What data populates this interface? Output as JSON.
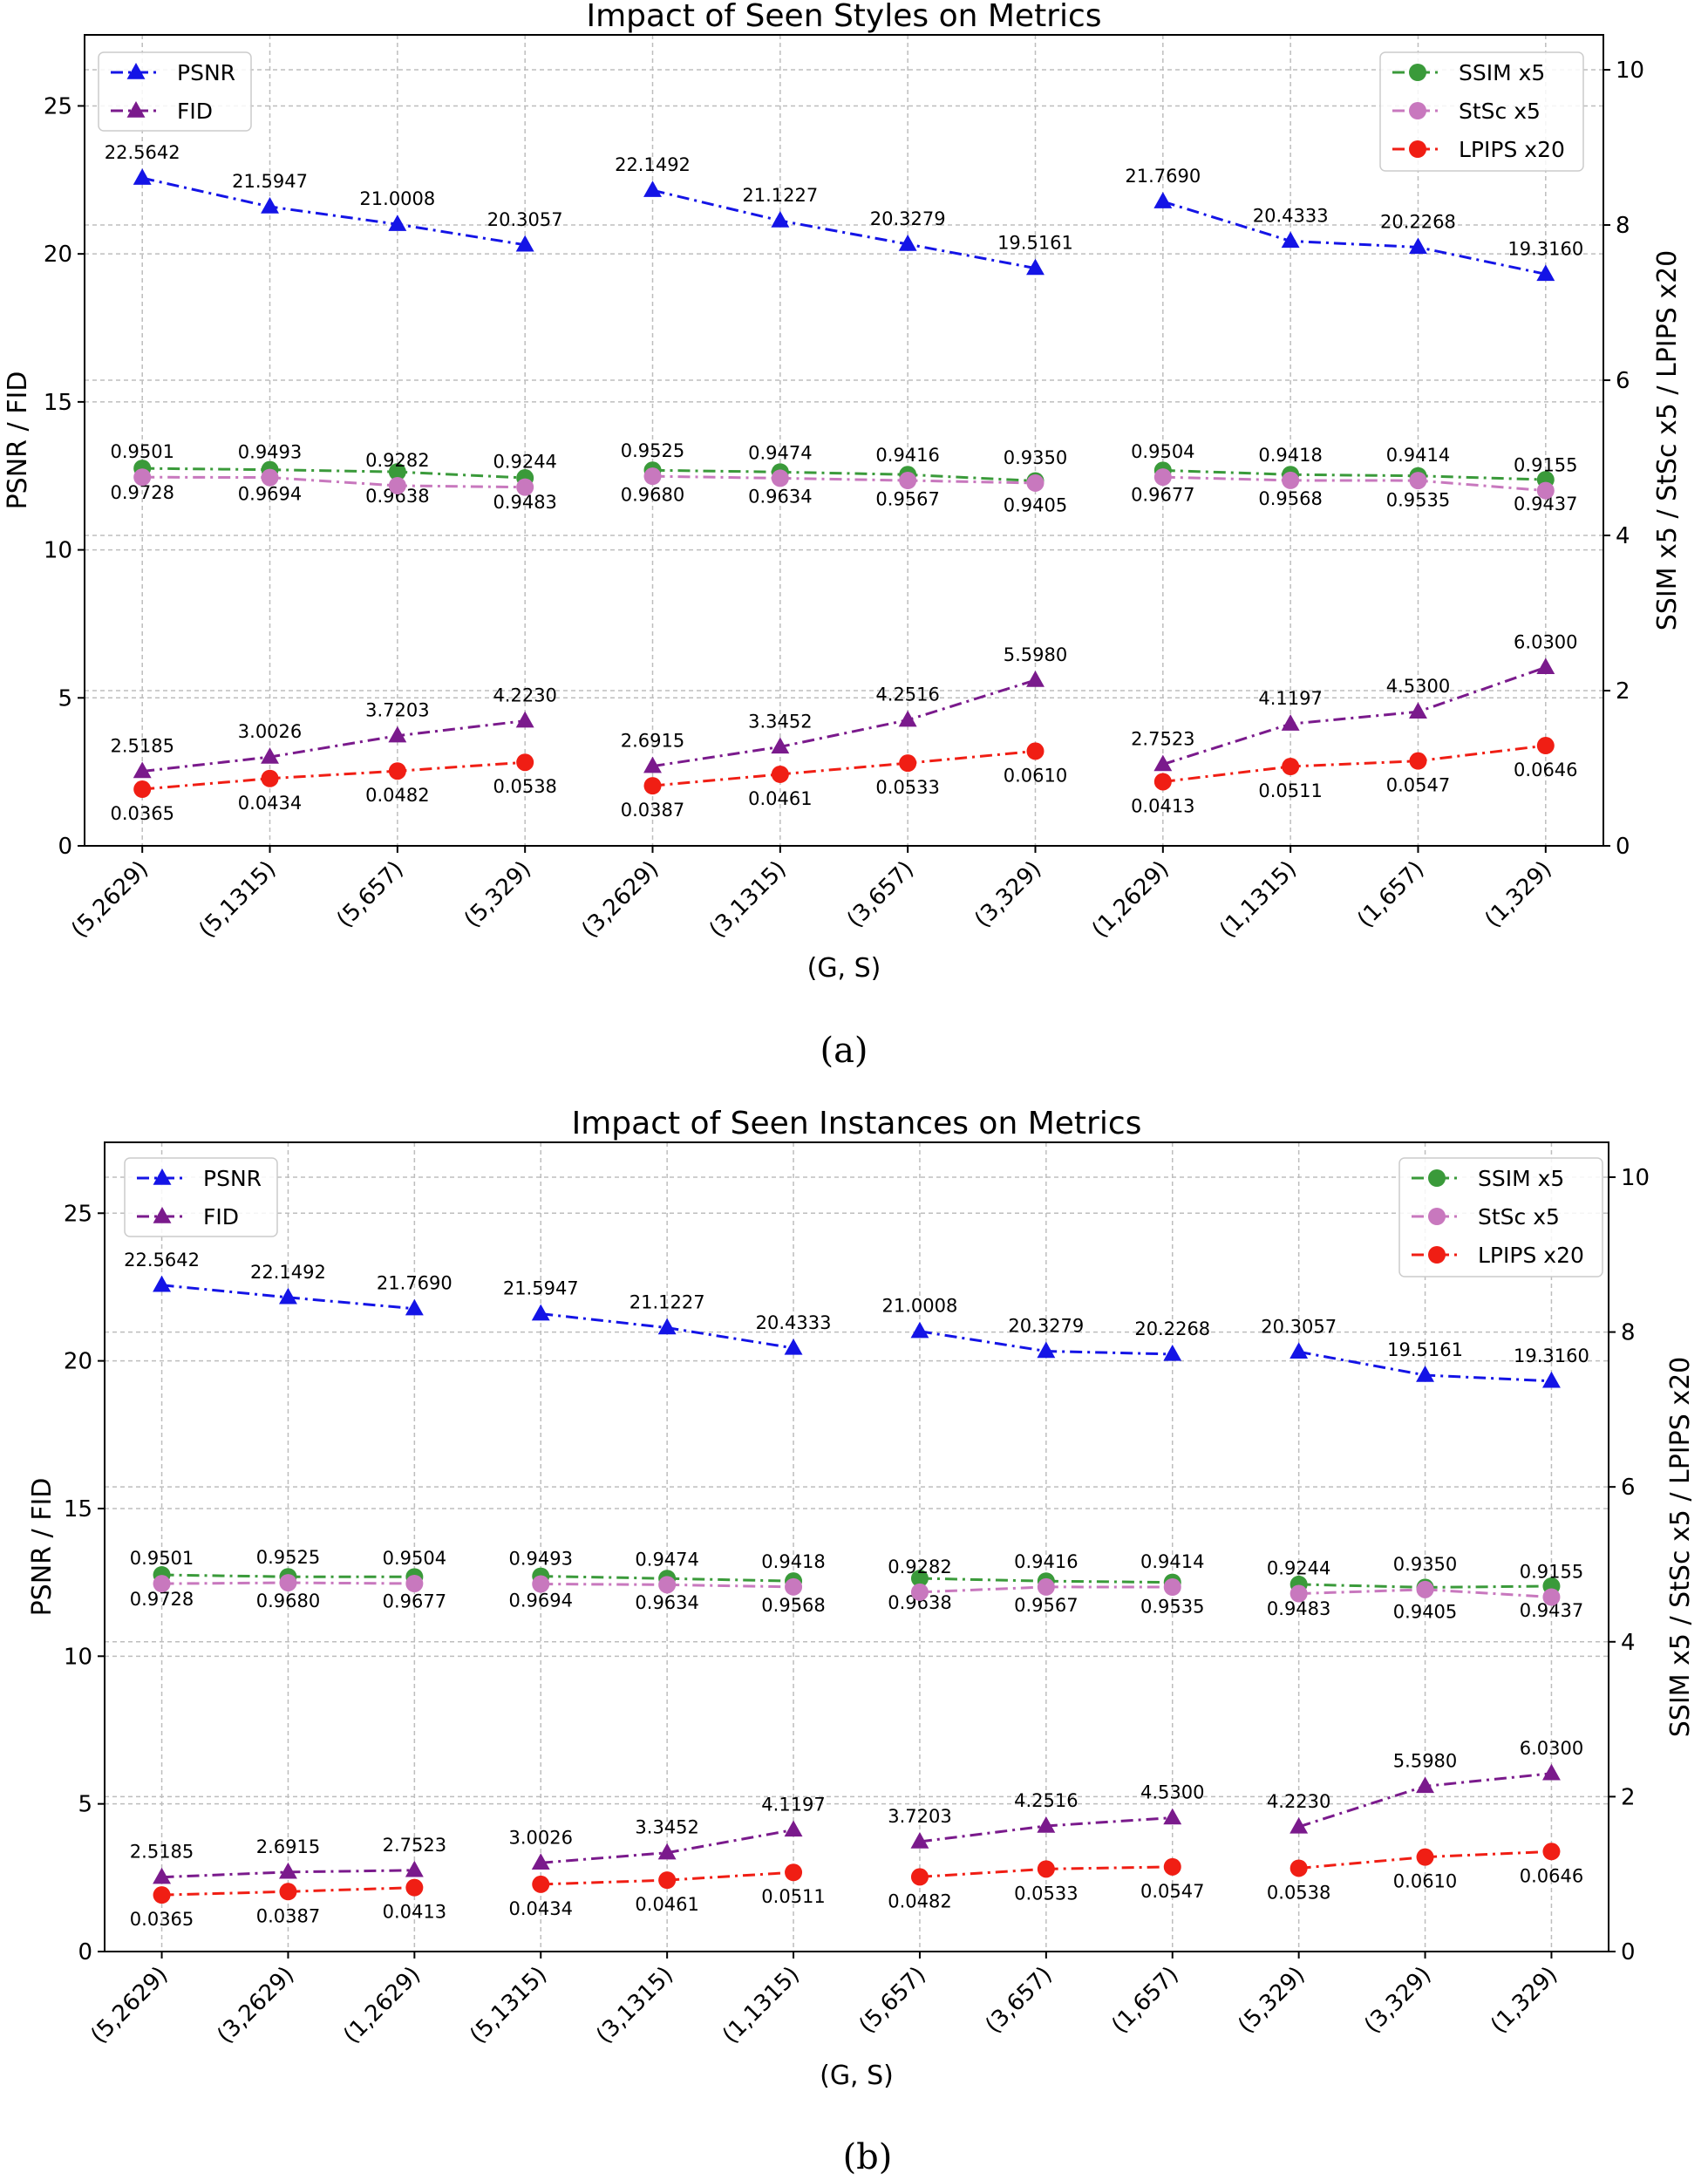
{
  "captions": [
    "(a)",
    "(b)"
  ],
  "colors": {
    "PSNR": "#1414e6",
    "FID": "#7a1a8c",
    "SSIM x5": "#3a9a3a",
    "StSc x5": "#c878be",
    "LPIPS x20": "#f01e14"
  },
  "chart_data": [
    {
      "type": "line",
      "title": "Impact of Seen Styles on Metrics",
      "xlabel": "(G, S)",
      "ylabel": "PSNR / FID",
      "ylabel_right": "SSIM x5 / StSc x5 / LPIPS x20",
      "ylim": [
        0,
        27.4
      ],
      "ylim_right": [
        0,
        10.45
      ],
      "yticks": [
        0,
        5,
        10,
        15,
        20,
        25
      ],
      "yticks_right": [
        0,
        2,
        4,
        6,
        8,
        10
      ],
      "grid": true,
      "legend_left": "top-left",
      "legend_right": "top-right",
      "categories": [
        "(5,2629)",
        "(5,1315)",
        "(5,657)",
        "(5,329)",
        "(3,2629)",
        "(3,1315)",
        "(3,657)",
        "(3,329)",
        "(1,2629)",
        "(1,1315)",
        "(1,657)",
        "(1,329)"
      ],
      "segments": [
        [
          0,
          1,
          2,
          3
        ],
        [
          4,
          5,
          6,
          7
        ],
        [
          8,
          9,
          10,
          11
        ]
      ],
      "series": [
        {
          "name": "PSNR",
          "axis": "left",
          "marker": "triangle",
          "labels": "above",
          "values": [
            22.5642,
            21.5947,
            21.0008,
            20.3057,
            22.1492,
            21.1227,
            20.3279,
            19.5161,
            21.769,
            20.4333,
            20.2268,
            19.316
          ],
          "value_labels": [
            "22.5642",
            "21.5947",
            "21.0008",
            "20.3057",
            "22.1492",
            "21.1227",
            "20.3279",
            "19.5161",
            "21.7690",
            "20.4333",
            "20.2268",
            "19.3160"
          ]
        },
        {
          "name": "FID",
          "axis": "left",
          "marker": "triangle",
          "labels": "above",
          "values": [
            2.5185,
            3.0026,
            3.7203,
            4.223,
            2.6915,
            3.3452,
            4.2516,
            5.598,
            2.7523,
            4.1197,
            4.53,
            6.03
          ],
          "value_labels": [
            "2.5185",
            "3.0026",
            "3.7203",
            "4.2230",
            "2.6915",
            "3.3452",
            "4.2516",
            "5.5980",
            "2.7523",
            "4.1197",
            "4.5300",
            "6.0300"
          ]
        },
        {
          "name": "SSIM x5",
          "axis": "right",
          "marker": "circle",
          "labels": "below",
          "values": [
            4.864,
            4.847,
            4.819,
            4.7415,
            4.84,
            4.817,
            4.7835,
            4.7025,
            4.8385,
            4.784,
            4.7675,
            4.7185
          ],
          "value_labels": [
            "0.9728",
            "0.9694",
            "0.9638",
            "0.9483",
            "0.9680",
            "0.9634",
            "0.9567",
            "0.9405",
            "0.9677",
            "0.9568",
            "0.9535",
            "0.9437"
          ]
        },
        {
          "name": "StSc x5",
          "axis": "right",
          "marker": "circle",
          "labels": "above",
          "values": [
            4.7505,
            4.7465,
            4.641,
            4.622,
            4.7625,
            4.737,
            4.708,
            4.675,
            4.752,
            4.709,
            4.707,
            4.5775
          ],
          "value_labels": [
            "0.9501",
            "0.9493",
            "0.9282",
            "0.9244",
            "0.9525",
            "0.9474",
            "0.9416",
            "0.9350",
            "0.9504",
            "0.9418",
            "0.9414",
            "0.9155"
          ]
        },
        {
          "name": "LPIPS x20",
          "axis": "right",
          "marker": "circle",
          "labels": "below",
          "values": [
            0.73,
            0.868,
            0.964,
            1.076,
            0.774,
            0.922,
            1.066,
            1.22,
            0.826,
            1.022,
            1.094,
            1.292
          ],
          "value_labels": [
            "0.0365",
            "0.0434",
            "0.0482",
            "0.0538",
            "0.0387",
            "0.0461",
            "0.0533",
            "0.0610",
            "0.0413",
            "0.0511",
            "0.0547",
            "0.0646"
          ]
        }
      ]
    },
    {
      "type": "line",
      "title": "Impact of Seen Instances on Metrics",
      "xlabel": "(G, S)",
      "ylabel": "PSNR / FID",
      "ylabel_right": "SSIM x5 / StSc x5  / LPIPS x20",
      "ylim": [
        0,
        27.4
      ],
      "ylim_right": [
        0,
        10.45
      ],
      "yticks": [
        0,
        5,
        10,
        15,
        20,
        25
      ],
      "yticks_right": [
        0,
        2,
        4,
        6,
        8,
        10
      ],
      "grid": true,
      "legend_left": "top-left",
      "legend_right": "top-right",
      "categories": [
        "(5,2629)",
        "(3,2629)",
        "(1,2629)",
        "(5,1315)",
        "(3,1315)",
        "(1,1315)",
        "(5,657)",
        "(3,657)",
        "(1,657)",
        "(5,329)",
        "(3,329)",
        "(1,329)"
      ],
      "segments": [
        [
          0,
          1,
          2
        ],
        [
          3,
          4,
          5
        ],
        [
          6,
          7,
          8
        ],
        [
          9,
          10,
          11
        ]
      ],
      "series": [
        {
          "name": "PSNR",
          "axis": "left",
          "marker": "triangle",
          "labels": "above",
          "values": [
            22.5642,
            22.1492,
            21.769,
            21.5947,
            21.1227,
            20.4333,
            21.0008,
            20.3279,
            20.2268,
            20.3057,
            19.5161,
            19.316
          ],
          "value_labels": [
            "22.5642",
            "22.1492",
            "21.7690",
            "21.5947",
            "21.1227",
            "20.4333",
            "21.0008",
            "20.3279",
            "20.2268",
            "20.3057",
            "19.5161",
            "19.3160"
          ]
        },
        {
          "name": "FID",
          "axis": "left",
          "marker": "triangle",
          "labels": "above",
          "values": [
            2.5185,
            2.6915,
            2.7523,
            3.0026,
            3.3452,
            4.1197,
            3.7203,
            4.2516,
            4.53,
            4.223,
            5.598,
            6.03
          ],
          "value_labels": [
            "2.5185",
            "2.6915",
            "2.7523",
            "3.0026",
            "3.3452",
            "4.1197",
            "3.7203",
            "4.2516",
            "4.5300",
            "4.2230",
            "5.5980",
            "6.0300"
          ]
        },
        {
          "name": "SSIM x5",
          "axis": "right",
          "marker": "circle",
          "labels": "below",
          "values": [
            4.864,
            4.84,
            4.8385,
            4.847,
            4.817,
            4.784,
            4.819,
            4.7835,
            4.7675,
            4.7415,
            4.7025,
            4.7185
          ],
          "value_labels": [
            "0.9728",
            "0.9680",
            "0.9677",
            "0.9694",
            "0.9634",
            "0.9568",
            "0.9638",
            "0.9567",
            "0.9535",
            "0.9483",
            "0.9405",
            "0.9437"
          ]
        },
        {
          "name": "StSc x5",
          "axis": "right",
          "marker": "circle",
          "labels": "above",
          "values": [
            4.7505,
            4.7625,
            4.752,
            4.7465,
            4.737,
            4.709,
            4.641,
            4.708,
            4.707,
            4.622,
            4.675,
            4.5775
          ],
          "value_labels": [
            "0.9501",
            "0.9525",
            "0.9504",
            "0.9493",
            "0.9474",
            "0.9418",
            "0.9282",
            "0.9416",
            "0.9414",
            "0.9244",
            "0.9350",
            "0.9155"
          ]
        },
        {
          "name": "LPIPS x20",
          "axis": "right",
          "marker": "circle",
          "labels": "below",
          "values": [
            0.73,
            0.774,
            0.826,
            0.868,
            0.922,
            1.022,
            0.964,
            1.066,
            1.094,
            1.076,
            1.22,
            1.292
          ],
          "value_labels": [
            "0.0365",
            "0.0387",
            "0.0413",
            "0.0434",
            "0.0461",
            "0.0511",
            "0.0482",
            "0.0533",
            "0.0547",
            "0.0538",
            "0.0610",
            "0.0646"
          ]
        }
      ]
    }
  ]
}
